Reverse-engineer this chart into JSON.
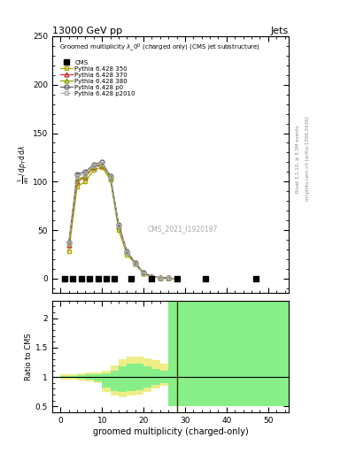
{
  "title_top": "13000 GeV pp",
  "title_right": "Jets",
  "watermark": "CMS_2021_I1920187",
  "xlabel": "groomed multiplicity (charged-only)",
  "ylabel_main_lines": [
    "mathrm d²N",
    "mathrm d p₁ mathrm d lambda"
  ],
  "ylabel_ratio": "Ratio to CMS",
  "right_text1": "Rivet 3.1.10, ≥ 3.3M events",
  "right_text2": "mcplots.cern.ch [arXiv:1306.3436]",
  "pythia_x": [
    2,
    4,
    6,
    8,
    10,
    12,
    14,
    16,
    18,
    20,
    22,
    24,
    26,
    28
  ],
  "p350_y": [
    28,
    95,
    100,
    112,
    115,
    102,
    50,
    25,
    15,
    5,
    2,
    1,
    0.5,
    0
  ],
  "p370_y": [
    35,
    100,
    105,
    115,
    117,
    105,
    55,
    28,
    16,
    6,
    2.5,
    1,
    0.5,
    0
  ],
  "p380_y": [
    36,
    102,
    106,
    116,
    118,
    104,
    54,
    27,
    15,
    5.5,
    2,
    1,
    0.5,
    0
  ],
  "p0_y": [
    37,
    108,
    110,
    118,
    120,
    106,
    56,
    28,
    16,
    6,
    2,
    1,
    0.5,
    0
  ],
  "p2010_y": [
    36,
    106,
    108,
    117,
    119,
    105,
    55,
    27,
    15.5,
    5.8,
    2.1,
    1,
    0.5,
    0
  ],
  "cms_x": [
    1,
    3,
    5,
    7,
    9,
    11,
    13,
    17,
    22,
    28,
    35,
    47
  ],
  "cms_y": [
    0,
    0,
    0,
    0,
    0,
    0,
    0,
    0,
    0,
    0,
    0,
    0
  ],
  "xlim": [
    -2,
    55
  ],
  "ylim_main": [
    -15,
    165
  ],
  "ylim_ratio": [
    0.4,
    2.3
  ],
  "yticks_main": [
    0,
    50,
    100,
    150,
    200,
    250
  ],
  "ytick_labels_main": [
    "0",
    "50",
    "100",
    "150",
    "200",
    "250"
  ],
  "xticks": [
    0,
    10,
    20,
    30,
    40,
    50
  ],
  "ratio_yticks": [
    0.5,
    1.0,
    1.5,
    2.0
  ],
  "ratio_ytick_labels": [
    "0.5",
    "1",
    "1.5",
    "2"
  ],
  "color_350": "#aaaa00",
  "color_370": "#cc3333",
  "color_380": "#88aa00",
  "color_p0": "#666666",
  "color_p2010": "#aaaaaa",
  "ratio_green": "#88ee88",
  "ratio_yellow": "#eeee88",
  "ratio_vline_x": 28,
  "yellow_edges": [
    0,
    2,
    4,
    6,
    8,
    10,
    12,
    14,
    16,
    18,
    20,
    22,
    24,
    26
  ],
  "yellow_lo": [
    0.96,
    0.96,
    0.94,
    0.93,
    0.9,
    0.75,
    0.68,
    0.65,
    0.68,
    0.7,
    0.75,
    0.8,
    0.85,
    0.85
  ],
  "yellow_hi": [
    1.04,
    1.04,
    1.06,
    1.07,
    1.08,
    1.1,
    1.2,
    1.3,
    1.35,
    1.35,
    1.32,
    1.28,
    1.22,
    1.22
  ],
  "green_edges": [
    0,
    2,
    4,
    6,
    8,
    10,
    12,
    14,
    16,
    18,
    20,
    22,
    24,
    26,
    55
  ],
  "green_lo": [
    0.98,
    0.98,
    0.97,
    0.96,
    0.93,
    0.82,
    0.76,
    0.74,
    0.76,
    0.78,
    0.82,
    0.86,
    0.9,
    0.5,
    0.5
  ],
  "green_hi": [
    1.02,
    1.02,
    1.03,
    1.04,
    1.05,
    1.06,
    1.1,
    1.18,
    1.22,
    1.22,
    1.18,
    1.14,
    1.1,
    2.3,
    2.3
  ]
}
